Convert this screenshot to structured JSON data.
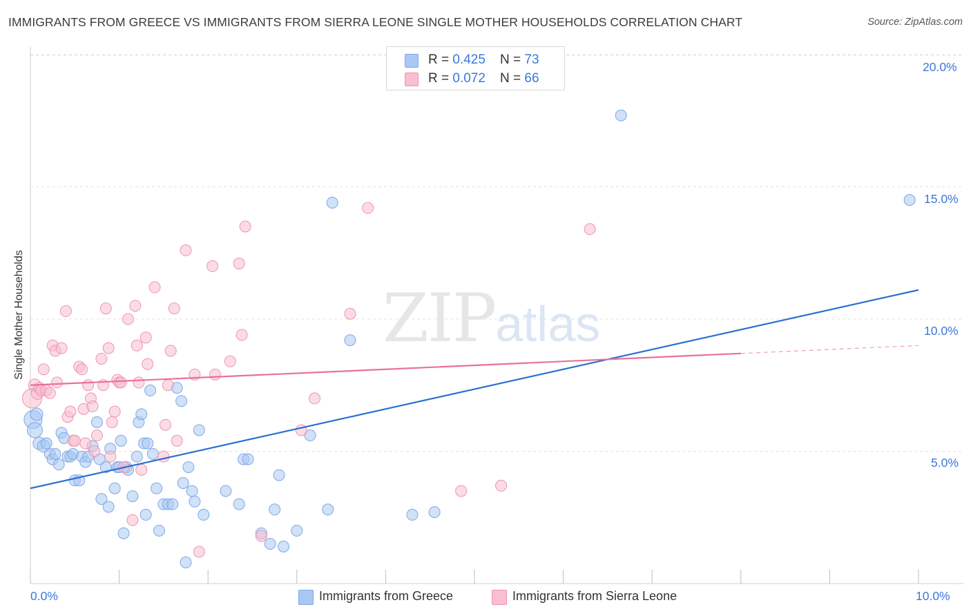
{
  "title": "IMMIGRANTS FROM GREECE VS IMMIGRANTS FROM SIERRA LEONE SINGLE MOTHER HOUSEHOLDS CORRELATION CHART",
  "source": "Source: ZipAtlas.com",
  "watermark": {
    "zip": "ZIP",
    "atlas": "atlas"
  },
  "legend": {
    "rows": [
      {
        "r_label": "R = ",
        "r": "0.425",
        "n_label": "N = ",
        "n": "73"
      },
      {
        "r_label": "R = ",
        "r": "0.072",
        "n_label": "N = ",
        "n": "66"
      }
    ]
  },
  "bottom_legend": [
    "Immigrants from Greece",
    "Immigrants from Sierra Leone"
  ],
  "axis": {
    "x_min_label": "0.0%",
    "x_max_label": "10.0%",
    "y_ticks": [
      "20.0%",
      "15.0%",
      "10.0%",
      "5.0%"
    ]
  },
  "colors": {
    "blue_fill": "#a9c8f3",
    "blue_stroke": "#7ea8e6",
    "blue_line": "#2b6fd1",
    "pink_fill": "#f8bfd0",
    "pink_stroke": "#ef93b1",
    "pink_line": "#e8709a",
    "tick_text": "#3b78d8",
    "grid": "#e3e3e3"
  },
  "chart_data": {
    "type": "scatter",
    "title": "IMMIGRANTS FROM GREECE VS IMMIGRANTS FROM SIERRA LEONE SINGLE MOTHER HOUSEHOLDS CORRELATION CHART",
    "xlabel": "",
    "ylabel": "Single Mother Households",
    "xlim": [
      0,
      10
    ],
    "ylim": [
      0,
      20.5
    ],
    "grid": true,
    "legend_position": "top-center",
    "series": [
      {
        "name": "Immigrants from Greece",
        "color": "#a9c8f3",
        "trend": {
          "x": [
            0,
            10
          ],
          "y": [
            3.6,
            11.1
          ]
        },
        "points": [
          [
            0.03,
            6.2,
            13
          ],
          [
            0.05,
            5.8,
            11
          ],
          [
            0.07,
            6.4,
            9
          ],
          [
            0.1,
            5.3,
            9
          ],
          [
            0.15,
            5.2,
            9
          ],
          [
            0.18,
            5.3,
            8
          ],
          [
            0.22,
            4.9,
            8
          ],
          [
            0.25,
            4.7,
            8
          ],
          [
            0.28,
            4.9,
            8
          ],
          [
            0.32,
            4.5,
            8
          ],
          [
            0.35,
            5.7,
            8
          ],
          [
            0.38,
            5.5,
            8
          ],
          [
            0.42,
            4.8,
            8
          ],
          [
            0.45,
            4.8,
            8
          ],
          [
            0.48,
            4.9,
            8
          ],
          [
            0.5,
            3.9,
            8
          ],
          [
            0.55,
            3.9,
            8
          ],
          [
            0.58,
            4.8,
            8
          ],
          [
            0.62,
            4.6,
            8
          ],
          [
            0.65,
            4.8,
            8
          ],
          [
            0.7,
            5.2,
            8
          ],
          [
            0.75,
            6.1,
            8
          ],
          [
            0.78,
            4.7,
            8
          ],
          [
            0.8,
            3.2,
            8
          ],
          [
            0.85,
            4.4,
            8
          ],
          [
            0.88,
            2.9,
            8
          ],
          [
            0.9,
            5.1,
            8
          ],
          [
            0.95,
            3.6,
            8
          ],
          [
            0.98,
            4.4,
            8
          ],
          [
            1.0,
            4.4,
            8
          ],
          [
            1.02,
            5.4,
            8
          ],
          [
            1.05,
            1.9,
            8
          ],
          [
            1.08,
            4.4,
            8
          ],
          [
            1.1,
            4.3,
            8
          ],
          [
            1.15,
            3.3,
            8
          ],
          [
            1.2,
            4.8,
            8
          ],
          [
            1.22,
            6.1,
            8
          ],
          [
            1.25,
            6.4,
            8
          ],
          [
            1.28,
            5.3,
            8
          ],
          [
            1.3,
            2.6,
            8
          ],
          [
            1.32,
            5.3,
            8
          ],
          [
            1.35,
            7.3,
            8
          ],
          [
            1.38,
            4.9,
            8
          ],
          [
            1.42,
            3.6,
            8
          ],
          [
            1.45,
            2.0,
            8
          ],
          [
            1.5,
            3.0,
            8
          ],
          [
            1.55,
            3.0,
            8
          ],
          [
            1.6,
            3.0,
            8
          ],
          [
            1.65,
            7.4,
            8
          ],
          [
            1.7,
            6.9,
            8
          ],
          [
            1.72,
            3.8,
            8
          ],
          [
            1.75,
            0.8,
            8
          ],
          [
            1.78,
            4.4,
            8
          ],
          [
            1.82,
            3.5,
            8
          ],
          [
            1.85,
            3.1,
            8
          ],
          [
            1.9,
            5.8,
            8
          ],
          [
            1.95,
            2.6,
            8
          ],
          [
            2.2,
            3.5,
            8
          ],
          [
            2.35,
            3.0,
            8
          ],
          [
            2.4,
            4.7,
            8
          ],
          [
            2.45,
            4.7,
            8
          ],
          [
            2.6,
            1.9,
            8
          ],
          [
            2.7,
            1.5,
            8
          ],
          [
            2.75,
            2.8,
            8
          ],
          [
            2.8,
            4.1,
            8
          ],
          [
            2.85,
            1.4,
            8
          ],
          [
            3.0,
            2.0,
            8
          ],
          [
            3.15,
            5.6,
            8
          ],
          [
            3.35,
            2.8,
            8
          ],
          [
            3.4,
            14.4,
            8
          ],
          [
            3.6,
            9.2,
            8
          ],
          [
            4.3,
            2.6,
            8
          ],
          [
            4.55,
            2.7,
            8
          ],
          [
            6.65,
            17.7,
            8
          ],
          [
            9.9,
            14.5,
            8
          ]
        ]
      },
      {
        "name": "Immigrants from Sierra Leone",
        "color": "#f8bfd0",
        "trend": {
          "x": [
            0,
            8.0
          ],
          "y": [
            7.5,
            8.7
          ],
          "dashed_to": {
            "x": 10,
            "y": 9.0
          }
        },
        "points": [
          [
            0.02,
            7.0,
            14
          ],
          [
            0.05,
            7.5,
            9
          ],
          [
            0.08,
            7.2,
            9
          ],
          [
            0.1,
            7.4,
            8
          ],
          [
            0.12,
            7.3,
            8
          ],
          [
            0.15,
            8.1,
            8
          ],
          [
            0.18,
            7.3,
            8
          ],
          [
            0.22,
            7.2,
            8
          ],
          [
            0.25,
            9.0,
            8
          ],
          [
            0.28,
            8.8,
            8
          ],
          [
            0.3,
            7.6,
            8
          ],
          [
            0.35,
            8.9,
            8
          ],
          [
            0.4,
            10.3,
            8
          ],
          [
            0.42,
            6.3,
            8
          ],
          [
            0.45,
            6.5,
            8
          ],
          [
            0.48,
            5.4,
            8
          ],
          [
            0.5,
            5.4,
            8
          ],
          [
            0.55,
            8.2,
            8
          ],
          [
            0.58,
            8.1,
            8
          ],
          [
            0.6,
            6.6,
            8
          ],
          [
            0.62,
            5.3,
            8
          ],
          [
            0.65,
            7.5,
            8
          ],
          [
            0.68,
            7.0,
            8
          ],
          [
            0.7,
            6.7,
            8
          ],
          [
            0.72,
            5.0,
            8
          ],
          [
            0.75,
            5.6,
            8
          ],
          [
            0.8,
            8.5,
            8
          ],
          [
            0.82,
            7.5,
            8
          ],
          [
            0.85,
            10.4,
            8
          ],
          [
            0.88,
            8.9,
            8
          ],
          [
            0.9,
            4.8,
            8
          ],
          [
            0.92,
            6.1,
            8
          ],
          [
            0.95,
            6.5,
            8
          ],
          [
            0.98,
            7.7,
            8
          ],
          [
            1.0,
            7.6,
            8
          ],
          [
            1.02,
            7.6,
            8
          ],
          [
            1.05,
            4.4,
            8
          ],
          [
            1.1,
            10.0,
            8
          ],
          [
            1.15,
            2.4,
            8
          ],
          [
            1.18,
            10.5,
            8
          ],
          [
            1.2,
            9.0,
            8
          ],
          [
            1.22,
            7.6,
            8
          ],
          [
            1.25,
            4.3,
            8
          ],
          [
            1.3,
            9.3,
            8
          ],
          [
            1.32,
            8.3,
            8
          ],
          [
            1.4,
            11.2,
            8
          ],
          [
            1.5,
            4.8,
            8
          ],
          [
            1.52,
            6.0,
            8
          ],
          [
            1.55,
            7.5,
            8
          ],
          [
            1.58,
            8.8,
            8
          ],
          [
            1.62,
            10.4,
            8
          ],
          [
            1.65,
            5.4,
            8
          ],
          [
            1.75,
            12.6,
            8
          ],
          [
            1.85,
            7.9,
            8
          ],
          [
            1.9,
            1.2,
            8
          ],
          [
            2.05,
            12.0,
            8
          ],
          [
            2.08,
            7.9,
            8
          ],
          [
            2.25,
            8.4,
            8
          ],
          [
            2.35,
            12.1,
            8
          ],
          [
            2.38,
            9.4,
            8
          ],
          [
            2.42,
            13.5,
            8
          ],
          [
            2.6,
            1.8,
            8
          ],
          [
            3.05,
            5.8,
            8
          ],
          [
            3.2,
            7.0,
            8
          ],
          [
            3.6,
            10.2,
            8
          ],
          [
            3.8,
            14.2,
            8
          ],
          [
            4.85,
            3.5,
            8
          ],
          [
            5.3,
            3.7,
            8
          ],
          [
            6.3,
            13.4,
            8
          ]
        ]
      }
    ]
  }
}
